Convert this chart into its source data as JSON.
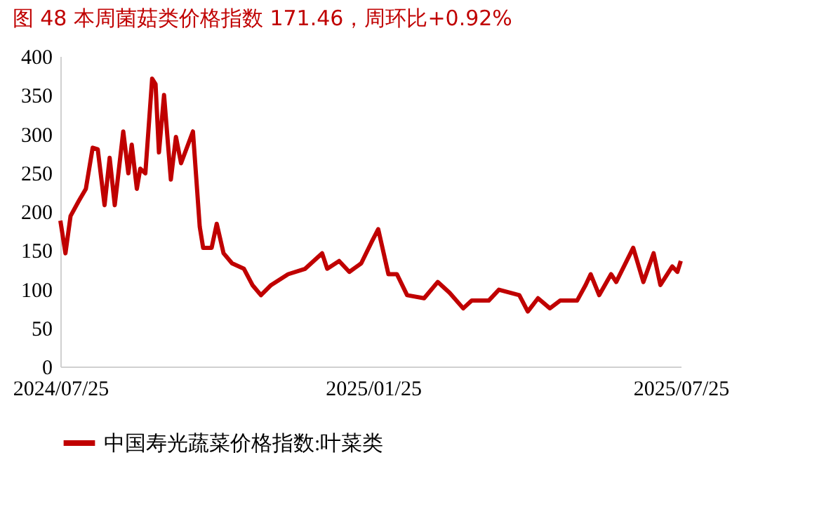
{
  "chart_data": {
    "type": "line",
    "title": "图 48 本周菌菇类价格指数 171.46，周环比+0.92%",
    "x": [
      "2024-07-25",
      "2024-07-28",
      "2024-07-31",
      "2024-08-05",
      "2024-08-09",
      "2024-08-13",
      "2024-08-16",
      "2024-08-20",
      "2024-08-23",
      "2024-08-26",
      "2024-08-31",
      "2024-09-03",
      "2024-09-05",
      "2024-09-08",
      "2024-09-10",
      "2024-09-13",
      "2024-09-17",
      "2024-09-19",
      "2024-09-21",
      "2024-09-24",
      "2024-09-28",
      "2024-10-01",
      "2024-10-04",
      "2024-10-11",
      "2024-10-15",
      "2024-10-17",
      "2024-10-22",
      "2024-10-25",
      "2024-10-29",
      "2024-11-03",
      "2024-11-10",
      "2024-11-15",
      "2024-11-20",
      "2024-11-26",
      "2024-12-06",
      "2024-12-16",
      "2024-12-26",
      "2024-12-29",
      "2025-01-05",
      "2025-01-11",
      "2025-01-18",
      "2025-01-24",
      "2025-01-28",
      "2025-02-03",
      "2025-02-08",
      "2025-02-14",
      "2025-02-24",
      "2025-03-04",
      "2025-03-11",
      "2025-03-19",
      "2025-03-24",
      "2025-04-03",
      "2025-04-09",
      "2025-04-21",
      "2025-04-26",
      "2025-05-02",
      "2025-05-09",
      "2025-05-15",
      "2025-05-25",
      "2025-05-30",
      "2025-06-02",
      "2025-06-07",
      "2025-06-14",
      "2025-06-17",
      "2025-06-27",
      "2025-07-03",
      "2025-07-09",
      "2025-07-13",
      "2025-07-20",
      "2025-07-23",
      "2025-07-25"
    ],
    "series": [
      {
        "name": "中国寿光蔬菜价格指数:叶菜类",
        "color": "#c00000",
        "values": [
          188,
          146,
          194,
          214,
          229,
          282,
          280,
          208,
          269,
          208,
          303,
          249,
          286,
          229,
          255,
          249,
          371,
          364,
          276,
          350,
          241,
          296,
          262,
          303,
          180,
          153,
          153,
          184,
          146,
          133,
          126,
          105,
          92,
          105,
          119,
          126,
          146,
          126,
          136,
          122,
          133,
          160,
          177,
          119,
          119,
          92,
          88,
          109,
          95,
          75,
          85,
          85,
          99,
          92,
          71,
          88,
          75,
          85,
          85,
          105,
          119,
          92,
          119,
          109,
          153,
          109,
          146,
          105,
          129,
          122,
          136
        ]
      }
    ],
    "xlim": [
      "2024-07-25",
      "2025-07-25"
    ],
    "xticks": [
      {
        "value": "2024-07-25",
        "label": "2024/07/25"
      },
      {
        "value": "2025-01-25",
        "label": "2025/01/25"
      },
      {
        "value": "2025-07-25",
        "label": "2025/07/25"
      }
    ],
    "ylim": [
      0,
      400
    ],
    "yticks": [
      0,
      50,
      100,
      150,
      200,
      250,
      300,
      350,
      400
    ],
    "grid": false,
    "legend": "bottom",
    "marker": "none",
    "line_style": "solid"
  }
}
